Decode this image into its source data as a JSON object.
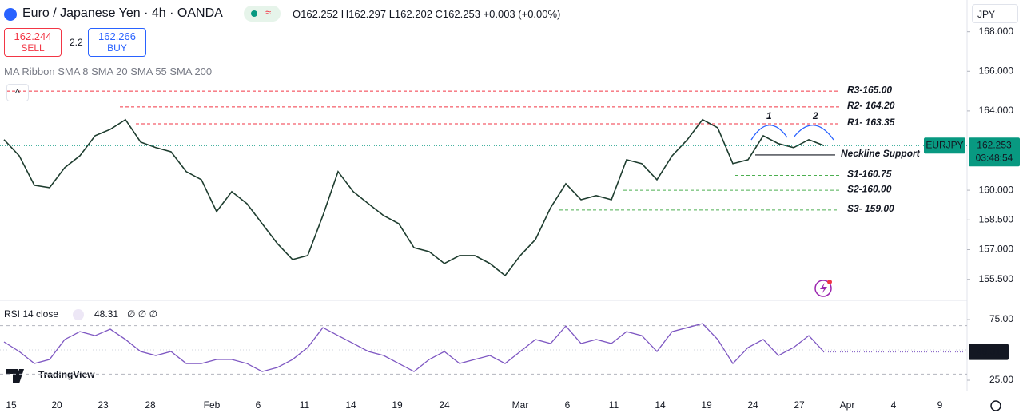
{
  "header": {
    "symbol": "Euro / Japanese Yen · 4h · OANDA",
    "ohlc": "O162.252 H162.297 L162.202 C162.253 +0.003 (+0.00%)",
    "sell_price": 162.244,
    "sell": "SELL",
    "spread": 2.2,
    "buy_price": 162.266,
    "buy": "BUY",
    "indicator": "MA Ribbon SMA 8 SMA 20 SMA 55 SMA 200",
    "currency": "JPY"
  },
  "footer": {
    "brand": "TradingView"
  },
  "annotations": [
    "1",
    "2"
  ],
  "x_axis": {
    "labels": [
      "15",
      "20",
      "23",
      "28",
      "Feb",
      "6",
      "11",
      "14",
      "19",
      "24",
      "Mar",
      "6",
      "11",
      "14",
      "19",
      "24",
      "27",
      "Apr",
      "4",
      "9"
    ]
  },
  "chart_data": [
    {
      "type": "line",
      "color": "#1e3d2f",
      "values": [
        162.55,
        161.74,
        160.25,
        160.13,
        161.14,
        161.74,
        162.75,
        163.07,
        163.56,
        162.43,
        162.15,
        161.94,
        160.94,
        160.53,
        158.92,
        159.93,
        159.32,
        158.31,
        157.31,
        156.5,
        156.7,
        158.72,
        160.94,
        159.93,
        159.32,
        158.72,
        158.31,
        157.1,
        156.9,
        156.3,
        156.7,
        156.7,
        156.3,
        155.69,
        156.7,
        157.51,
        159.12,
        160.33,
        159.52,
        159.73,
        159.52,
        161.54,
        161.34,
        160.53,
        161.74,
        162.55,
        163.56,
        163.15,
        161.34,
        161.54,
        162.75,
        162.35,
        162.15,
        162.55,
        162.253
      ],
      "ylim": [
        154.48,
        169.6
      ],
      "yticks": [
        {
          "value": 168,
          "label": "168.000"
        },
        {
          "value": 166,
          "label": "166.000"
        },
        {
          "value": 164,
          "label": "164.000"
        },
        {
          "value": 160,
          "label": "160.000"
        },
        {
          "value": 158.5,
          "label": "158.500"
        },
        {
          "value": 157,
          "label": "157.000"
        },
        {
          "value": 155.5,
          "label": "155.500"
        }
      ],
      "levels": [
        {
          "label": "R3-165.00",
          "value": 165,
          "color": "#f23645",
          "style": "dashed"
        },
        {
          "label": "R2- 164.20",
          "value": 164.2,
          "color": "#f23645",
          "style": "dashed"
        },
        {
          "label": "R1- 163.35",
          "value": 163.35,
          "color": "#f23645",
          "style": "dashed"
        },
        {
          "label": "Neckline Support",
          "value": 161.78,
          "color": "#131722",
          "style": "solid"
        },
        {
          "label": "S1-160.75",
          "value": 160.75,
          "color": "#4caf50",
          "style": "dashed"
        },
        {
          "label": "S2-160.00",
          "value": 160,
          "color": "#4caf50",
          "style": "dashed"
        },
        {
          "label": "S3- 159.00",
          "value": 159,
          "color": "#4caf50",
          "style": "dashed"
        }
      ],
      "last_price": {
        "symbol": "EURJPY",
        "value": 162.253,
        "countdown": "03:48:54",
        "color": "#089981"
      }
    },
    {
      "type": "line",
      "title": "RSI 14 close",
      "readout": 48.31,
      "extra": "∅ ∅ ∅",
      "color": "#7e57c2",
      "values": [
        56.6,
        48.7,
        38.8,
        42.1,
        58.6,
        65.1,
        61.8,
        67.1,
        58.6,
        48.7,
        45.4,
        48.7,
        38.8,
        38.8,
        42.1,
        42.1,
        38.8,
        32.2,
        35.5,
        42.1,
        52.0,
        68.4,
        61.8,
        55.3,
        48.7,
        45.4,
        38.8,
        32.2,
        42.1,
        48.7,
        38.8,
        42.1,
        45.4,
        38.8,
        48.7,
        58.6,
        55.3,
        69.7,
        55.3,
        58.6,
        55.3,
        65.1,
        61.8,
        48.7,
        65.1,
        68.4,
        71.7,
        58.6,
        38.8,
        52.0,
        58.6,
        45.4,
        52.0,
        61.8,
        48.31
      ],
      "ylim": [
        15.8,
        89.5
      ],
      "yticks": [
        {
          "value": 75,
          "label": "75.00"
        },
        {
          "value": 25,
          "label": "25.00"
        }
      ],
      "bands": [
        70,
        30
      ],
      "midline": 50,
      "last_value": {
        "value": 48.31,
        "color": "#131722"
      }
    }
  ]
}
